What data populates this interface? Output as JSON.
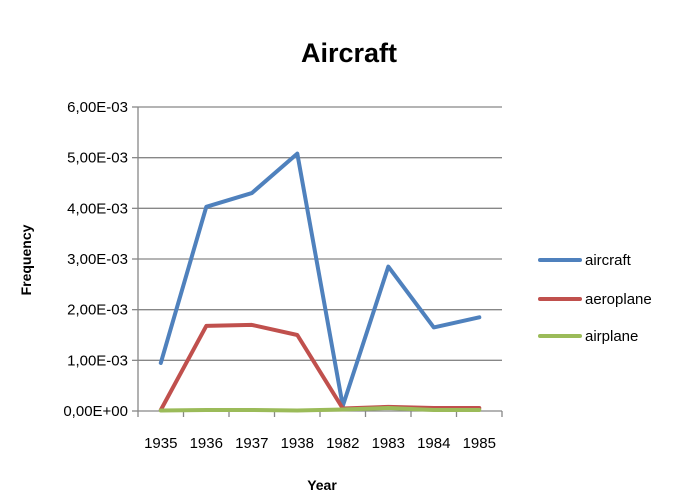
{
  "chart_data": {
    "type": "line",
    "title": "Aircraft",
    "xlabel": "Year",
    "ylabel": "Frequency",
    "categories": [
      "1935",
      "1936",
      "1937",
      "1938",
      "1982",
      "1983",
      "1984",
      "1985"
    ],
    "ylim": [
      0,
      0.006
    ],
    "y_ticks": [
      0,
      0.001,
      0.002,
      0.003,
      0.004,
      0.005,
      0.006
    ],
    "y_tick_labels": [
      "0,00E+00",
      "1,00E-03",
      "2,00E-03",
      "3,00E-03",
      "4,00E-03",
      "5,00E-03",
      "6,00E-03"
    ],
    "grid": true,
    "legend_position": "right",
    "series": [
      {
        "name": "aircraft",
        "color": "#4F81BD",
        "values": [
          0.00095,
          0.00403,
          0.0043,
          0.00508,
          0.0001,
          0.00285,
          0.00165,
          0.00185
        ]
      },
      {
        "name": "aeroplane",
        "color": "#C0504D",
        "values": [
          2e-05,
          0.00168,
          0.0017,
          0.0015,
          5e-05,
          8e-05,
          6e-05,
          6e-05
        ]
      },
      {
        "name": "airplane",
        "color": "#9BBB59",
        "values": [
          1e-05,
          2e-05,
          2e-05,
          1e-05,
          3e-05,
          6e-05,
          2e-05,
          2e-05
        ]
      }
    ]
  }
}
